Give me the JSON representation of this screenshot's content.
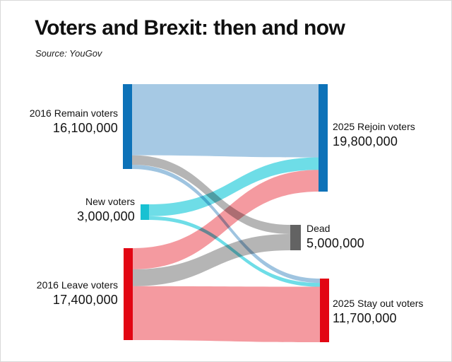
{
  "chart_data": {
    "type": "sankey",
    "title": "Voters and Brexit: then and now",
    "source_note": "Source: YouGov",
    "unit": "voters",
    "links_estimated_from_ribbon_widths": true,
    "nodes": [
      {
        "id": "remain",
        "label": "2016 Remain voters",
        "value_label": "16,100,000",
        "value": 16100000,
        "side": "left",
        "color": "#0d72b8"
      },
      {
        "id": "new",
        "label": "New voters",
        "value_label": "3,000,000",
        "value": 3000000,
        "side": "left",
        "color": "#18c1d2"
      },
      {
        "id": "leave",
        "label": "2016 Leave voters",
        "value_label": "17,400,000",
        "value": 17400000,
        "side": "left",
        "color": "#e20613"
      },
      {
        "id": "rejoin",
        "label": "2025 Rejoin voters",
        "value_label": "19,800,000",
        "value": 19800000,
        "side": "right",
        "color": "#0d72b8"
      },
      {
        "id": "dead",
        "label": "Dead",
        "value_label": "5,000,000",
        "value": 5000000,
        "side": "right",
        "color": "#636363"
      },
      {
        "id": "stayout",
        "label": "2025 Stay out voters",
        "value_label": "11,700,000",
        "value": 11700000,
        "side": "right",
        "color": "#e20613"
      }
    ],
    "links": [
      {
        "source": "remain",
        "target": "rejoin",
        "value": 13500000,
        "color": "#a6c9e4"
      },
      {
        "source": "remain",
        "target": "dead",
        "value": 1800000,
        "color": "#b5b5b5"
      },
      {
        "source": "remain",
        "target": "stayout",
        "value": 800000,
        "color": "#9fc4e0"
      },
      {
        "source": "new",
        "target": "rejoin",
        "value": 2300000,
        "color": "#6edde7"
      },
      {
        "source": "new",
        "target": "stayout",
        "value": 700000,
        "color": "#6edde7"
      },
      {
        "source": "leave",
        "target": "rejoin",
        "value": 4000000,
        "color": "#f49aa0"
      },
      {
        "source": "leave",
        "target": "dead",
        "value": 3200000,
        "color": "#b5b5b5"
      },
      {
        "source": "leave",
        "target": "stayout",
        "value": 10200000,
        "color": "#f49aa0"
      }
    ]
  }
}
